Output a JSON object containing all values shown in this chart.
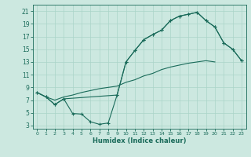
{
  "xlabel": "Humidex (Indice chaleur)",
  "bg_color": "#cce8e0",
  "grid_color": "#aad4c8",
  "line_color": "#1a6b5a",
  "xlim": [
    -0.5,
    23.5
  ],
  "ylim": [
    2.5,
    22
  ],
  "xticks": [
    0,
    1,
    2,
    3,
    4,
    5,
    6,
    7,
    8,
    9,
    10,
    11,
    12,
    13,
    14,
    15,
    16,
    17,
    18,
    19,
    20,
    21,
    22,
    23
  ],
  "yticks": [
    3,
    5,
    7,
    9,
    11,
    13,
    15,
    17,
    19,
    21
  ],
  "curve1_x": [
    0,
    1,
    2,
    3,
    4,
    5,
    6,
    7,
    8,
    9,
    10,
    11,
    12,
    13,
    14,
    15,
    16,
    17,
    18,
    19,
    20,
    21,
    22,
    23
  ],
  "curve1_y": [
    8.2,
    7.5,
    6.3,
    7.2,
    4.9,
    4.8,
    3.6,
    3.2,
    3.4,
    7.8,
    13.0,
    14.8,
    16.5,
    17.3,
    18.0,
    19.5,
    20.2,
    20.5,
    20.8,
    19.5,
    18.5,
    16.0,
    15.0,
    13.2
  ],
  "curve2_x": [
    0,
    1,
    2,
    3,
    4,
    5,
    6,
    7,
    8,
    9,
    10,
    11,
    12,
    13,
    14,
    15,
    16,
    17,
    18,
    19,
    20
  ],
  "curve2_y": [
    8.2,
    7.5,
    7.0,
    7.5,
    7.8,
    8.2,
    8.5,
    8.8,
    9.0,
    9.2,
    9.8,
    10.2,
    10.8,
    11.2,
    11.8,
    12.2,
    12.5,
    12.8,
    13.0,
    13.2,
    13.0
  ],
  "curve3_x": [
    0,
    1,
    2,
    3,
    9,
    10,
    11,
    12,
    13,
    14,
    15,
    16,
    17,
    18,
    19,
    20,
    21,
    22,
    23
  ],
  "curve3_y": [
    8.2,
    7.5,
    6.3,
    7.2,
    7.8,
    13.0,
    14.8,
    16.5,
    17.3,
    18.0,
    19.5,
    20.2,
    20.5,
    20.8,
    19.5,
    18.5,
    16.0,
    15.0,
    13.2
  ]
}
